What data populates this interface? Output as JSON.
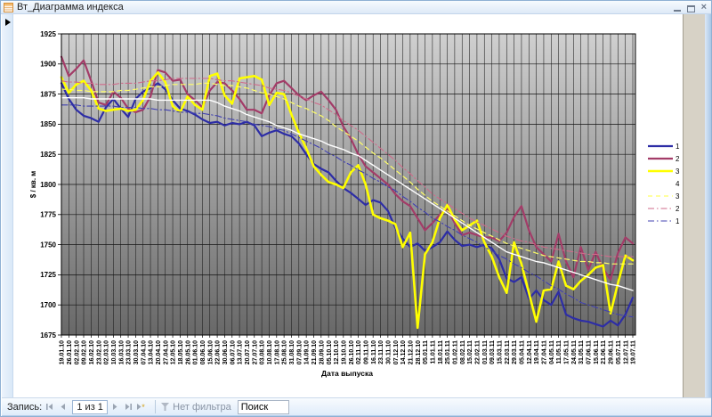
{
  "titlebar": {
    "title": "Вт_Диаграмма индекса"
  },
  "navbar": {
    "record_label": "Запись:",
    "position": "1 из 1",
    "filter_label": "Нет фильтра",
    "search_value": "Поиск"
  },
  "icons": {
    "form-icon": "orange access form sheet",
    "record-arrow": "black right triangle",
    "first-record": "bar + left triangle",
    "prev-record": "left triangle",
    "next-record": "right triangle",
    "last-record": "right triangle + bar",
    "new-record": "right triangle + asterisk",
    "filter": "funnel",
    "minimize": "–",
    "maximize": "▢",
    "close": "×"
  },
  "chart_data": {
    "type": "line",
    "title": "",
    "xlabel": "Дата выпуска",
    "ylabel": "$ / кв. м",
    "ylim": [
      1675,
      1925
    ],
    "ytick": 25,
    "grid": "on",
    "legend_position": "right",
    "legend_labels": [
      "1",
      "2",
      "3",
      "4",
      "3",
      "2",
      "1"
    ],
    "wall_gradient": [
      "#d0d0d0",
      "#686868"
    ],
    "categories": [
      "19.01.10",
      "26.01.10",
      "02.02.10",
      "09.02.10",
      "16.02.10",
      "23.02.10",
      "02.03.10",
      "10.03.10",
      "16.03.10",
      "23.03.10",
      "30.03.10",
      "07.04.10",
      "13.04.10",
      "20.04.10",
      "27.04.10",
      "12.05.10",
      "18.05.10",
      "26.05.10",
      "01.06.10",
      "08.06.10",
      "15.06.10",
      "22.06.10",
      "30.06.10",
      "06.07.10",
      "13.07.10",
      "20.07.10",
      "27.07.10",
      "03.08.10",
      "10.08.10",
      "17.08.10",
      "25.08.10",
      "31.08.10",
      "07.09.10",
      "14.09.10",
      "21.09.10",
      "28.09.10",
      "05.10.10",
      "12.10.10",
      "19.10.10",
      "26.10.10",
      "02.11.10",
      "09.11.10",
      "16.11.10",
      "23.11.10",
      "30.11.10",
      "07.12.10",
      "14.12.10",
      "21.12.10",
      "28.12.10",
      "05.01.11",
      "11.01.11",
      "18.01.11",
      "25.01.11",
      "01.02.11",
      "08.02.11",
      "15.02.11",
      "22.02.11",
      "01.03.11",
      "09.03.11",
      "15.03.11",
      "22.03.11",
      "29.03.11",
      "05.04.11",
      "12.04.11",
      "19.04.11",
      "27.04.11",
      "04.05.11",
      "11.05.11",
      "17.05.11",
      "24.05.11",
      "31.05.11",
      "07.06.11",
      "15.06.11",
      "21.06.11",
      "29.06.11",
      "05.07.11",
      "12.07.11",
      "19.07.11"
    ],
    "series": [
      {
        "name": "1",
        "kind": "data",
        "color": "#2d2da6",
        "width": 2.2,
        "dash": "",
        "values": [
          1884,
          1871,
          1862,
          1857,
          1855,
          1852,
          1864,
          1871,
          1863,
          1856,
          1871,
          1877,
          1880,
          1884,
          1879,
          1870,
          1863,
          1861,
          1858,
          1854,
          1851,
          1852,
          1849,
          1851,
          1850,
          1852,
          1849,
          1840,
          1843,
          1845,
          1842,
          1840,
          1834,
          1825,
          1817,
          1813,
          1810,
          1803,
          1797,
          1793,
          1788,
          1783,
          1787,
          1785,
          1778,
          1764,
          1755,
          1748,
          1751,
          1745,
          1748,
          1752,
          1761,
          1754,
          1749,
          1750,
          1748,
          1750,
          1747,
          1738,
          1722,
          1719,
          1723,
          1705,
          1712,
          1704,
          1700,
          1711,
          1692,
          1689,
          1687,
          1686,
          1684,
          1682,
          1687,
          1683,
          1692,
          1706
        ]
      },
      {
        "name": "2",
        "kind": "data",
        "color": "#a33c68",
        "width": 2.2,
        "dash": "",
        "values": [
          1906,
          1890,
          1896,
          1903,
          1886,
          1868,
          1866,
          1877,
          1872,
          1863,
          1860,
          1862,
          1873,
          1895,
          1893,
          1886,
          1887,
          1875,
          1870,
          1864,
          1878,
          1885,
          1884,
          1878,
          1871,
          1862,
          1862,
          1859,
          1874,
          1884,
          1886,
          1880,
          1874,
          1870,
          1874,
          1877,
          1870,
          1862,
          1848,
          1838,
          1825,
          1815,
          1810,
          1805,
          1800,
          1792,
          1786,
          1782,
          1772,
          1762,
          1768,
          1775,
          1780,
          1768,
          1758,
          1760,
          1758,
          1756,
          1756,
          1753,
          1760,
          1773,
          1782,
          1762,
          1748,
          1742,
          1736,
          1759,
          1736,
          1723,
          1748,
          1729,
          1744,
          1730,
          1721,
          1743,
          1756,
          1751
        ]
      },
      {
        "name": "3",
        "kind": "data",
        "color": "#ffff00",
        "width": 2.6,
        "dash": "",
        "values": [
          1889,
          1876,
          1883,
          1886,
          1878,
          1863,
          1861,
          1862,
          1863,
          1861,
          1862,
          1870,
          1886,
          1893,
          1885,
          1865,
          1860,
          1873,
          1866,
          1862,
          1890,
          1892,
          1874,
          1867,
          1888,
          1889,
          1890,
          1887,
          1866,
          1876,
          1875,
          1858,
          1843,
          1830,
          1815,
          1808,
          1802,
          1800,
          1797,
          1810,
          1816,
          1800,
          1775,
          1772,
          1770,
          1767,
          1748,
          1760,
          1681,
          1742,
          1752,
          1772,
          1783,
          1771,
          1762,
          1766,
          1770,
          1752,
          1740,
          1723,
          1710,
          1752,
          1734,
          1710,
          1686,
          1712,
          1713,
          1736,
          1716,
          1713,
          1720,
          1725,
          1731,
          1733,
          1693,
          1718,
          1741,
          1737
        ]
      },
      {
        "name": "4",
        "kind": "data",
        "color": "#ffffff",
        "width": 1.4,
        "dash": "",
        "values": [
          1872,
          1872,
          1872,
          1872,
          1871,
          1871,
          1871,
          1871,
          1871,
          1871,
          1871,
          1871,
          1871,
          1870,
          1870,
          1870,
          1870,
          1870,
          1870,
          1870,
          1870,
          1868,
          1865,
          1863,
          1861,
          1858,
          1856,
          1854,
          1852,
          1849,
          1847,
          1845,
          1842,
          1840,
          1838,
          1836,
          1833,
          1831,
          1829,
          1826,
          1824,
          1820,
          1816,
          1812,
          1808,
          1804,
          1800,
          1796,
          1792,
          1788,
          1784,
          1780,
          1776,
          1772,
          1768,
          1764,
          1760,
          1756,
          1752,
          1748,
          1744,
          1742,
          1740,
          1738,
          1736,
          1735,
          1733,
          1731,
          1729,
          1727,
          1725,
          1723,
          1721,
          1719,
          1717,
          1716,
          1714,
          1712
        ]
      },
      {
        "name": "3",
        "kind": "trend",
        "color": "#ffff66",
        "width": 1.2,
        "dash": "5,4",
        "values": [
          1879,
          1879,
          1878,
          1878,
          1877,
          1877,
          1877,
          1877,
          1878,
          1878,
          1879,
          1880,
          1881,
          1881,
          1882,
          1883,
          1883,
          1883,
          1883,
          1884,
          1884,
          1883,
          1882,
          1882,
          1881,
          1880,
          1878,
          1876,
          1875,
          1873,
          1871,
          1868,
          1865,
          1863,
          1860,
          1857,
          1853,
          1848,
          1844,
          1840,
          1836,
          1831,
          1826,
          1822,
          1817,
          1812,
          1807,
          1802,
          1796,
          1791,
          1786,
          1782,
          1778,
          1774,
          1770,
          1766,
          1763,
          1760,
          1757,
          1754,
          1751,
          1749,
          1747,
          1745,
          1743,
          1741,
          1740,
          1739,
          1738,
          1737,
          1736,
          1736,
          1735,
          1735,
          1734,
          1734,
          1734,
          1734
        ]
      },
      {
        "name": "2",
        "kind": "trend",
        "color": "#cf6a8a",
        "width": 1.1,
        "dash": "7,3,1.5,3",
        "values": [
          1886,
          1885,
          1885,
          1884,
          1884,
          1883,
          1883,
          1883,
          1884,
          1884,
          1884,
          1885,
          1886,
          1886,
          1887,
          1888,
          1888,
          1888,
          1888,
          1888,
          1888,
          1887,
          1886,
          1886,
          1885,
          1884,
          1883,
          1882,
          1880,
          1879,
          1878,
          1876,
          1873,
          1871,
          1868,
          1866,
          1862,
          1858,
          1853,
          1849,
          1845,
          1840,
          1835,
          1830,
          1825,
          1820,
          1814,
          1809,
          1803,
          1798,
          1792,
          1788,
          1784,
          1780,
          1776,
          1772,
          1769,
          1766,
          1763,
          1760,
          1757,
          1755,
          1753,
          1752,
          1750,
          1748,
          1747,
          1746,
          1745,
          1744,
          1743,
          1742,
          1742,
          1741,
          1740,
          1740,
          1740,
          1740
        ]
      },
      {
        "name": "1",
        "kind": "trend",
        "color": "#4040b0",
        "width": 1.1,
        "dash": "7,3,1.5,3",
        "values": [
          1866,
          1866,
          1866,
          1865,
          1865,
          1865,
          1865,
          1865,
          1864,
          1864,
          1864,
          1863,
          1863,
          1862,
          1862,
          1861,
          1860,
          1860,
          1859,
          1859,
          1858,
          1857,
          1855,
          1854,
          1853,
          1852,
          1850,
          1849,
          1848,
          1846,
          1845,
          1842,
          1839,
          1836,
          1833,
          1830,
          1826,
          1823,
          1819,
          1816,
          1812,
          1809,
          1805,
          1802,
          1798,
          1795,
          1790,
          1786,
          1781,
          1777,
          1772,
          1769,
          1765,
          1762,
          1758,
          1755,
          1752,
          1748,
          1745,
          1741,
          1738,
          1734,
          1731,
          1727,
          1724,
          1720,
          1716,
          1713,
          1709,
          1706,
          1702,
          1700,
          1698,
          1696,
          1694,
          1692,
          1691,
          1690
        ]
      }
    ]
  }
}
